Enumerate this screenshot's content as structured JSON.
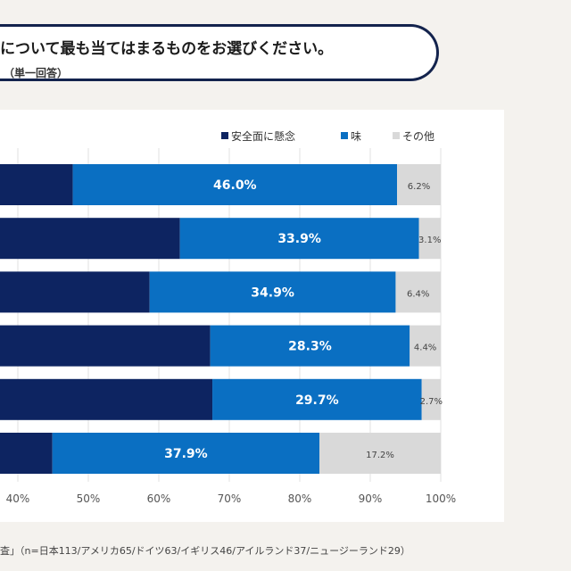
{
  "header": {
    "question": "について最も当てはまるものをお選びください。",
    "note": "（単一回答）"
  },
  "footer": {
    "source": "査」（n=日本113/アメリカ65/ドイツ63/イギリス46/アイルランド37/ニュージーランド29）"
  },
  "colors": {
    "safety": "#0d2461",
    "taste": "#0a6fc2",
    "other": "#d9d9d9",
    "border": "#13234d"
  },
  "chart_data": {
    "type": "bar",
    "orientation": "horizontal-stacked-100",
    "legend_position": "top-right",
    "grid": true,
    "xlim": [
      0,
      100
    ],
    "x_tick_labels": [
      "40%",
      "50%",
      "60%",
      "70%",
      "80%",
      "90%",
      "100%"
    ],
    "series": [
      {
        "name": "安全面に懸念",
        "values": [
          47.8,
          63.0,
          58.7,
          67.3,
          67.6,
          44.9
        ],
        "labels": [
          "",
          "",
          "",
          "",
          "",
          ""
        ]
      },
      {
        "name": "味",
        "values": [
          46.0,
          33.9,
          34.9,
          28.3,
          29.7,
          37.9
        ],
        "labels": [
          "46.0%",
          "33.9%",
          "34.9%",
          "28.3%",
          "29.7%",
          "37.9%"
        ]
      },
      {
        "name": "その他",
        "values": [
          6.2,
          3.1,
          6.4,
          4.4,
          2.7,
          17.2
        ],
        "labels": [
          "6.2%",
          "3.1%",
          "6.4%",
          "4.4%",
          "2.7%",
          "17.2%"
        ]
      }
    ]
  }
}
